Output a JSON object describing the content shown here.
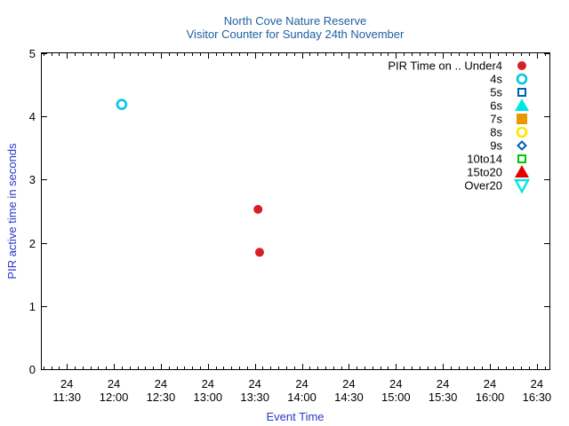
{
  "chart_data": {
    "type": "scatter",
    "title": "North Cove Nature Reserve",
    "subtitle": "Visitor Counter for Sunday 24th November",
    "xlabel": "Event Time",
    "ylabel": "PIR active time in seconds",
    "xlim": [
      "11:14",
      "16:38"
    ],
    "ylim": [
      0,
      5
    ],
    "y_ticks": [
      "0",
      "1",
      "2",
      "3",
      "4",
      "5"
    ],
    "x_ticks": [
      {
        "day": "24",
        "time": "11:30"
      },
      {
        "day": "24",
        "time": "12:00"
      },
      {
        "day": "24",
        "time": "12:30"
      },
      {
        "day": "24",
        "time": "13:00"
      },
      {
        "day": "24",
        "time": "13:30"
      },
      {
        "day": "24",
        "time": "14:00"
      },
      {
        "day": "24",
        "time": "14:30"
      },
      {
        "day": "24",
        "time": "15:00"
      },
      {
        "day": "24",
        "time": "15:30"
      },
      {
        "day": "24",
        "time": "16:00"
      },
      {
        "day": "24",
        "time": "16:30"
      }
    ],
    "grid": false,
    "legend_position": "top-right",
    "legend_title": "PIR Time on ..",
    "series": [
      {
        "name": "Under4",
        "marker": "filled-circle",
        "color": "#d62027",
        "points": [
          {
            "x": "13:32",
            "y": 2.53
          },
          {
            "x": "13:33",
            "y": 1.85
          }
        ]
      },
      {
        "name": "4s",
        "marker": "open-circle",
        "color": "#00c8e6",
        "points": [
          {
            "x": "12:05",
            "y": 4.19
          }
        ]
      },
      {
        "name": "5s",
        "marker": "open-square",
        "color": "#0060b0",
        "points": []
      },
      {
        "name": "6s",
        "marker": "filled-triangle-up",
        "color": "#00e6e6",
        "points": []
      },
      {
        "name": "7s",
        "marker": "filled-square",
        "color": "#e69a00",
        "points": []
      },
      {
        "name": "8s",
        "marker": "open-circle",
        "color": "#ffe600",
        "points": []
      },
      {
        "name": "9s",
        "marker": "open-diamond",
        "color": "#0060b0",
        "points": []
      },
      {
        "name": "10to14",
        "marker": "open-square",
        "color": "#00c800",
        "points": []
      },
      {
        "name": "15to20",
        "marker": "filled-triangle-up",
        "color": "#e60000",
        "points": []
      },
      {
        "name": "Over20",
        "marker": "open-triangle-down",
        "color": "#00e6e6",
        "points": []
      }
    ]
  }
}
